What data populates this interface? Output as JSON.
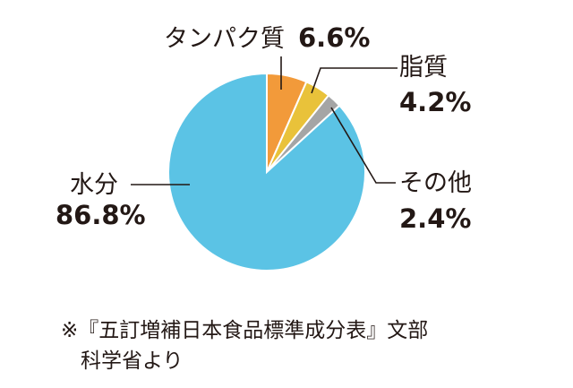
{
  "chart_data": {
    "type": "pie",
    "slices": [
      {
        "name": "水分",
        "value": 86.8,
        "label": "86.8%",
        "color": "#5bc3e5"
      },
      {
        "name": "タンパク質",
        "value": 6.6,
        "label": "6.6%",
        "color": "#f29a3a"
      },
      {
        "name": "脂質",
        "value": 4.2,
        "label": "4.2%",
        "color": "#e9c23a"
      },
      {
        "name": "その他",
        "value": 2.4,
        "label": "2.4%",
        "color": "#a5a5a5"
      }
    ],
    "start": "12 o'clock",
    "direction": "clockwise",
    "order": [
      "タンパク質",
      "脂質",
      "その他",
      "水分"
    ]
  },
  "source": {
    "line1": "※『五訂増補日本食品標準成分表』文部",
    "line2": "科学省より"
  }
}
